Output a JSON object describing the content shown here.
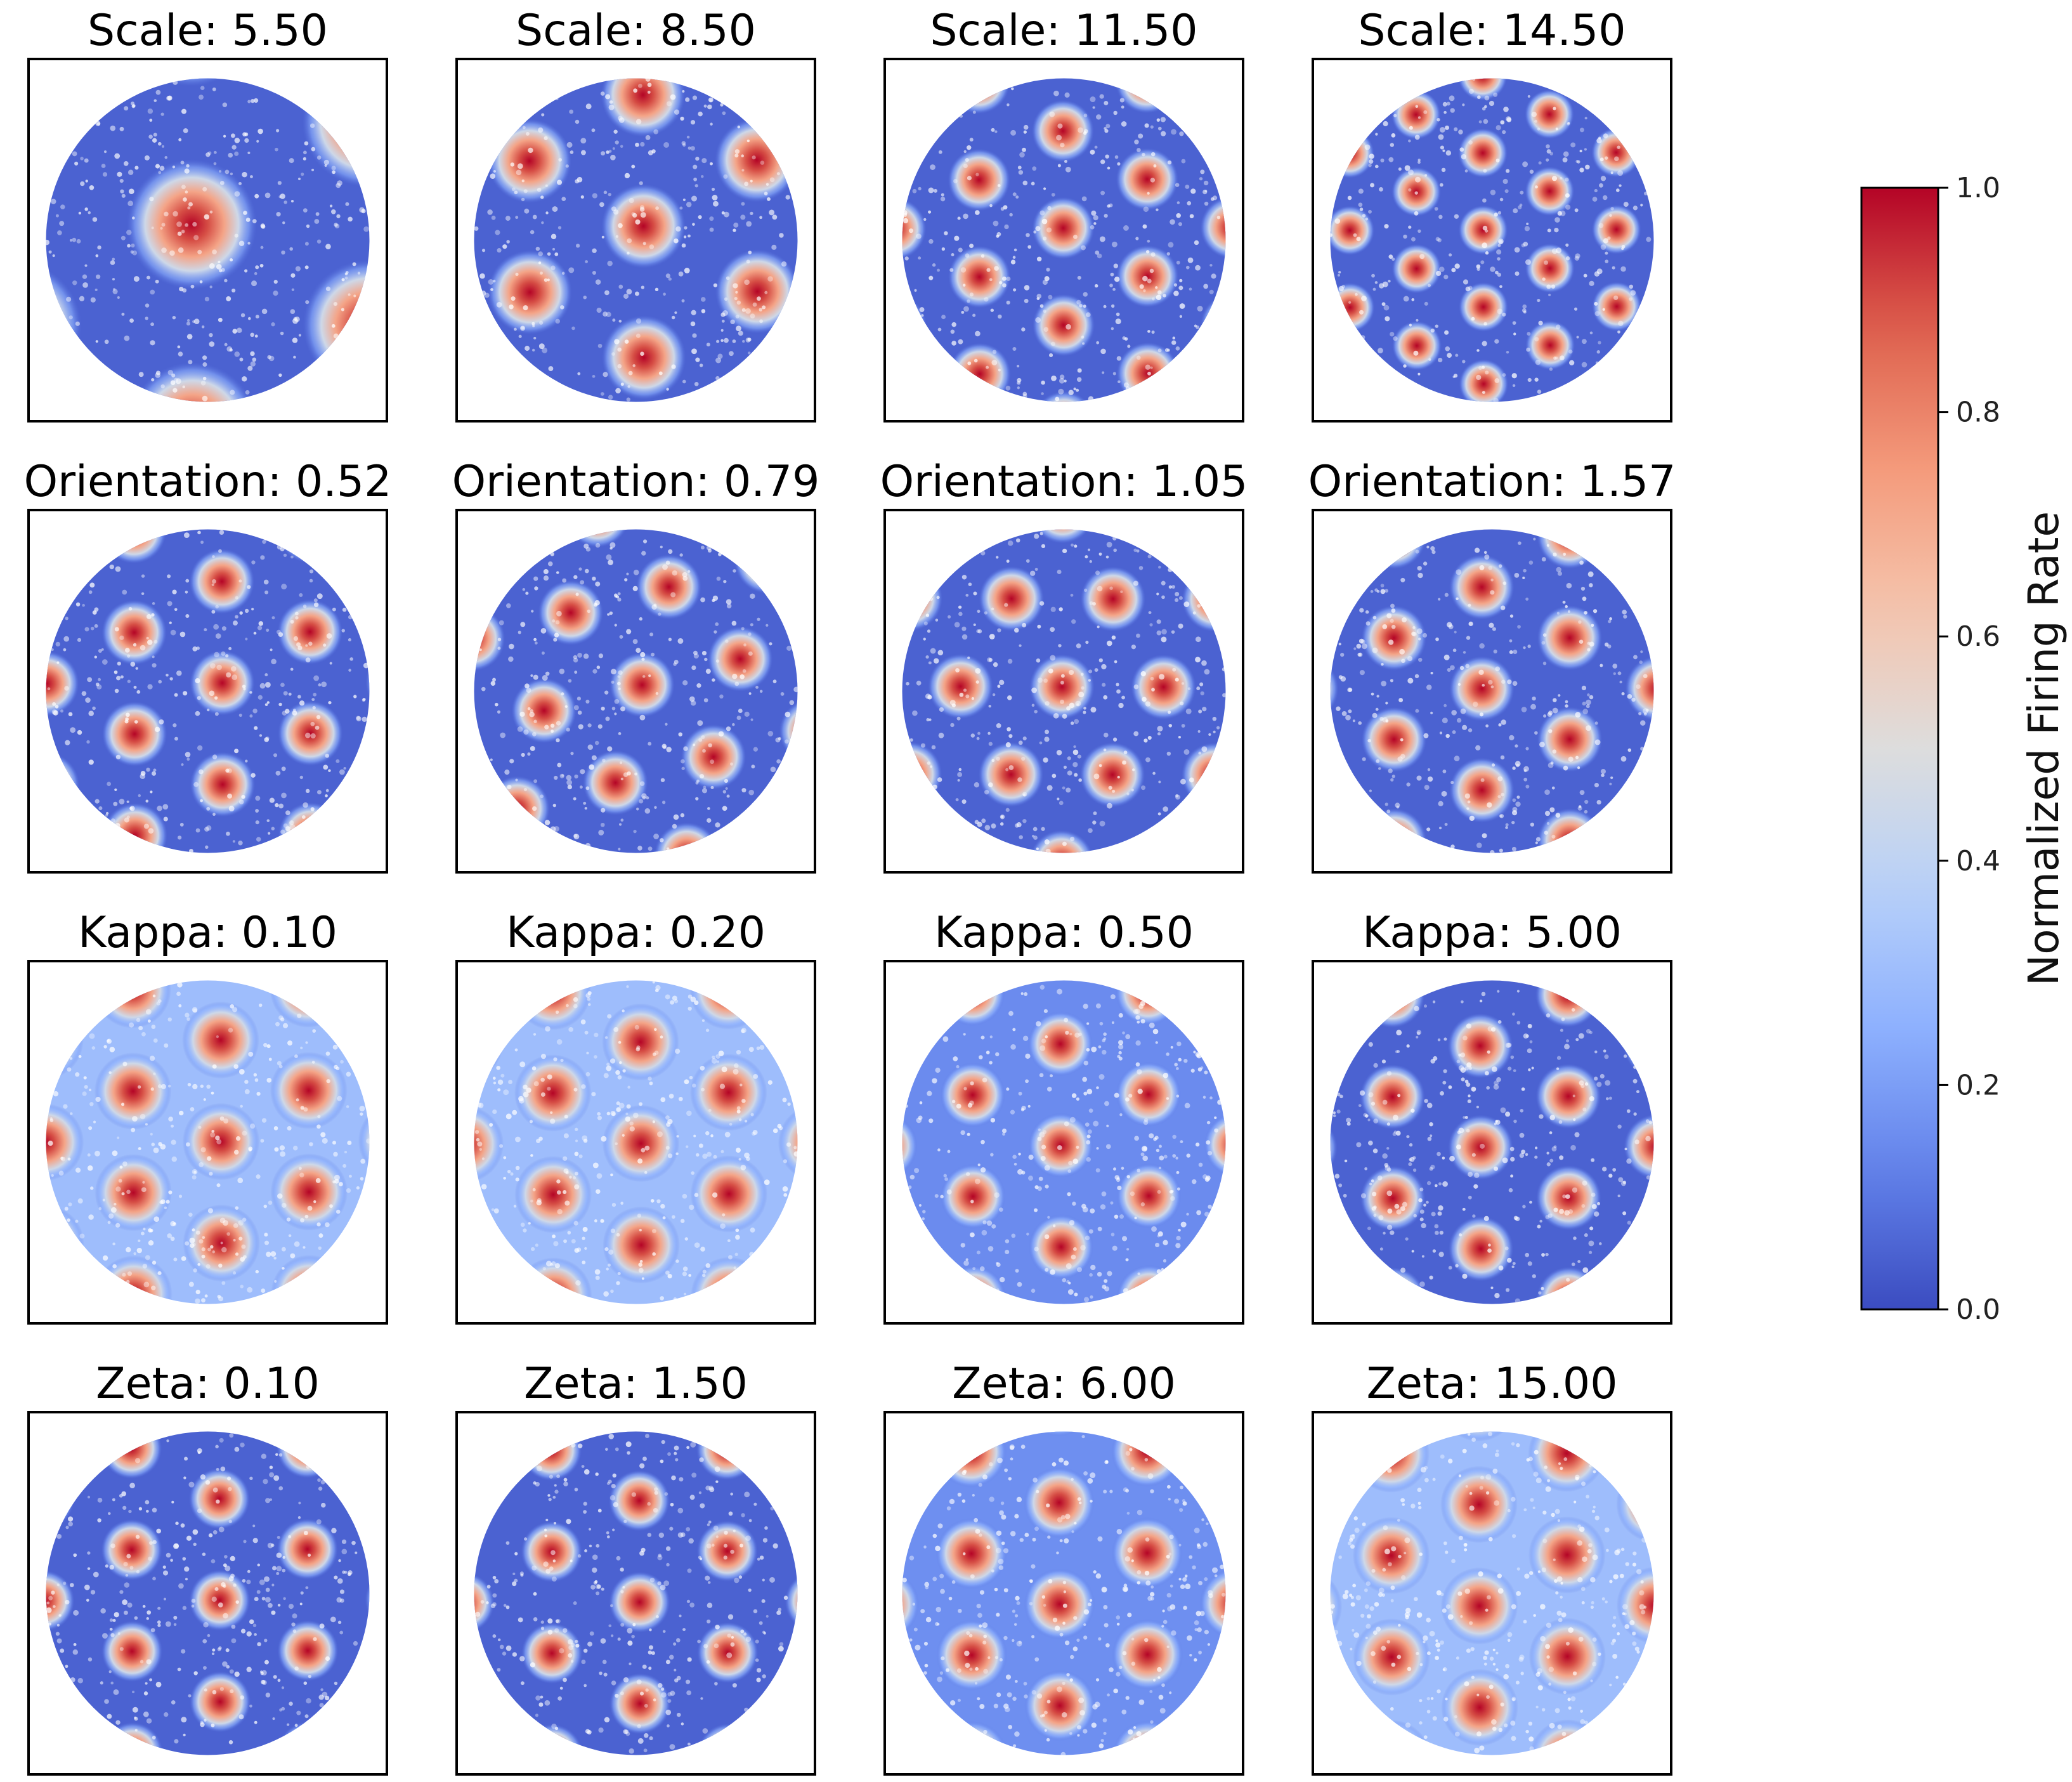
{
  "chart_data": {
    "type": "heatmap",
    "description_rows": [
      "Scale",
      "Orientation",
      "Kappa",
      "Zeta"
    ],
    "panels": [
      {
        "title": "Scale: 5.50",
        "param": "Scale",
        "value": 5.5
      },
      {
        "title": "Scale: 8.50",
        "param": "Scale",
        "value": 8.5
      },
      {
        "title": "Scale: 11.50",
        "param": "Scale",
        "value": 11.5
      },
      {
        "title": "Scale: 14.50",
        "param": "Scale",
        "value": 14.5
      },
      {
        "title": "Orientation: 0.52",
        "param": "Orientation",
        "value": 0.52
      },
      {
        "title": "Orientation: 0.79",
        "param": "Orientation",
        "value": 0.79
      },
      {
        "title": "Orientation: 1.05",
        "param": "Orientation",
        "value": 1.05
      },
      {
        "title": "Orientation: 1.57",
        "param": "Orientation",
        "value": 1.57
      },
      {
        "title": "Kappa: 0.10",
        "param": "Kappa",
        "value": 0.1
      },
      {
        "title": "Kappa: 0.20",
        "param": "Kappa",
        "value": 0.2
      },
      {
        "title": "Kappa: 0.50",
        "param": "Kappa",
        "value": 0.5
      },
      {
        "title": "Kappa: 5.00",
        "param": "Kappa",
        "value": 5.0
      },
      {
        "title": "Zeta: 0.10",
        "param": "Zeta",
        "value": 0.1
      },
      {
        "title": "Zeta: 1.50",
        "param": "Zeta",
        "value": 1.5
      },
      {
        "title": "Zeta: 6.00",
        "param": "Zeta",
        "value": 6.0
      },
      {
        "title": "Zeta: 15.00",
        "param": "Zeta",
        "value": 15.0
      }
    ],
    "colorbar": {
      "label": "Normalized Firing Rate",
      "range": [
        0.0,
        1.0
      ],
      "ticks": [
        "0.0",
        "0.2",
        "0.4",
        "0.6",
        "0.8",
        "1.0"
      ],
      "colormap": "coolwarm",
      "low_color": "#3b4cc0",
      "mid_color": "#dddddd",
      "high_color": "#b40426"
    },
    "grid": false,
    "legend": "right"
  }
}
